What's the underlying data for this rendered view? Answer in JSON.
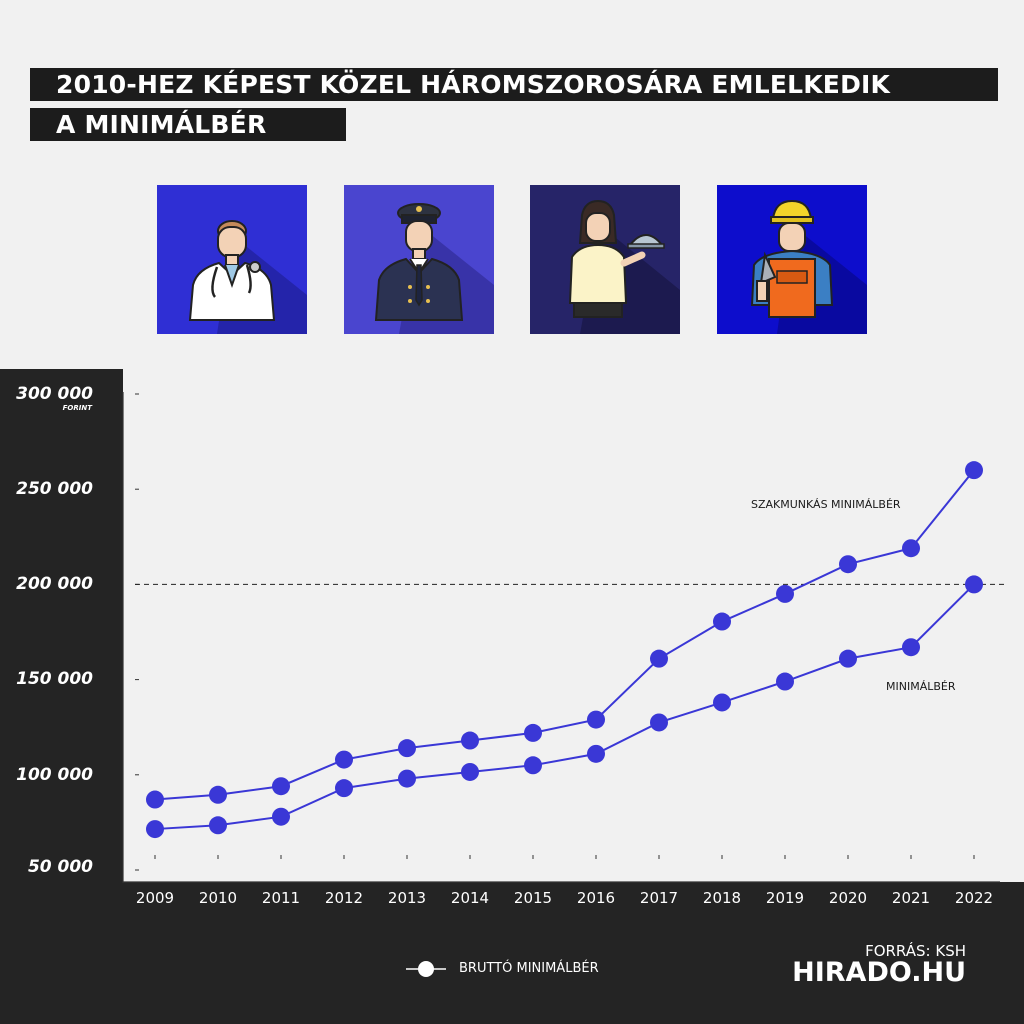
{
  "title": {
    "line1": "2010-HEZ KÉPEST KÖZEL HÁROMSZOROSÁRA EMLELKEDIK",
    "line2": "A MINIMÁLBÉR"
  },
  "icons": [
    {
      "name": "doctor-icon",
      "bg": "#2f2fd4",
      "shadow": "#2424aa"
    },
    {
      "name": "pilot-icon",
      "bg": "#4a45cf",
      "shadow": "#3833a8"
    },
    {
      "name": "waitress-icon",
      "bg": "#262468",
      "shadow": "#1c1a4f"
    },
    {
      "name": "construction-worker-icon",
      "bg": "#0d0dcc",
      "shadow": "#0909a0"
    }
  ],
  "y_unit": "FORINT",
  "legend": {
    "label": "BRUTTÓ MINIMÁLBÉR"
  },
  "source": "FORRÁS: KSH",
  "brand": "HIRADO.HU",
  "colors": {
    "series": "#3a37d6",
    "panel": "#242424",
    "background": "#f1f1f1"
  },
  "chart_data": {
    "type": "line",
    "title": "2010-HEZ KÉPEST KÖZEL HÁROMSZOROSÁRA EMLELKEDIK A MINIMÁLBÉR",
    "x": [
      "2009",
      "2010",
      "2011",
      "2012",
      "2013",
      "2014",
      "2015",
      "2016",
      "2017",
      "2018",
      "2019",
      "2020",
      "2021",
      "2022"
    ],
    "y_tick_labels": [
      "300 000",
      "250 000",
      "200 000",
      "150 000",
      "100 000",
      "50 000"
    ],
    "y_ticks": [
      300000,
      250000,
      200000,
      150000,
      100000,
      50000
    ],
    "ylim": [
      50000,
      300000
    ],
    "reference_line": {
      "value": 200000,
      "style": "dashed"
    },
    "series": [
      {
        "name": "SZAKMUNKÁS MINIMÁLBÉR",
        "values": [
          87000,
          89500,
          94000,
          108000,
          114000,
          118000,
          122000,
          129000,
          161000,
          180500,
          195000,
          210600,
          219000,
          260000
        ]
      },
      {
        "name": "MINIMÁLBÉR",
        "values": [
          71500,
          73500,
          78000,
          93000,
          98000,
          101500,
          105000,
          111000,
          127500,
          138000,
          149000,
          161000,
          167000,
          200000
        ]
      }
    ],
    "legend_position": "bottom-center",
    "grid": false
  }
}
